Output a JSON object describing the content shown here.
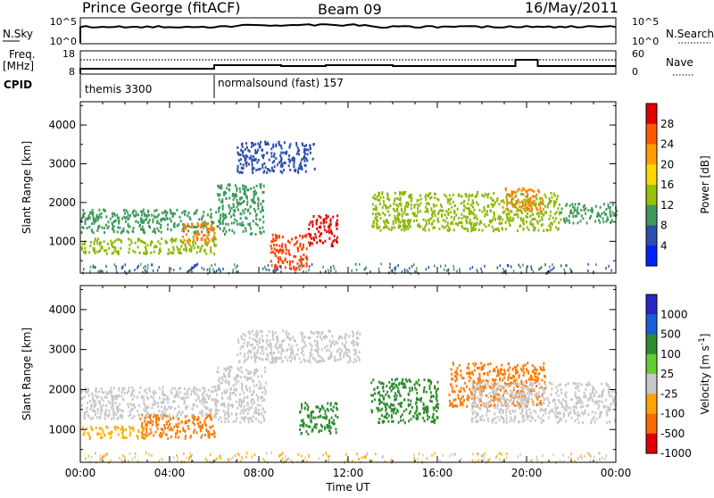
{
  "header": {
    "station": "Prince George (fitACF)",
    "beam": "Beam 09",
    "date": "16/May/2011"
  },
  "strips": {
    "nsky_label": "N.Sky",
    "nsky_ticks": [
      "10^5",
      "10^0"
    ],
    "nsearch_label": "N.Search",
    "nsearch_ticks": [
      "10^5",
      "10^0"
    ],
    "freq_label": "Freq.",
    "freq_unit": "[MHz]",
    "freq_ticks": [
      "18",
      "8"
    ],
    "nave_label": "Nave",
    "nave_ticks": [
      "60",
      "0"
    ],
    "cpid_label": "CPID",
    "cpid_segments": [
      {
        "label": "themis 3300",
        "start_hour": 0
      },
      {
        "label": "normalsound (fast) 157",
        "start_hour": 6
      }
    ]
  },
  "chart_data": [
    {
      "type": "heatmap",
      "title": "Power",
      "xlabel": "Time UT",
      "ylabel": "Slant Range [km]",
      "x_ticks": [
        "00:00",
        "04:00",
        "08:00",
        "12:00",
        "16:00",
        "20:00",
        "00:00"
      ],
      "xlim_hours": [
        0,
        24
      ],
      "ylim": [
        180,
        4600
      ],
      "y_ticks": [
        1000,
        2000,
        3000,
        4000
      ],
      "colorbar": {
        "label": "Power [dB]",
        "ticks": [
          "28",
          "24",
          "20",
          "16",
          "12",
          "8",
          "4"
        ],
        "colors": [
          "#e00000",
          "#ff5a00",
          "#ff9c00",
          "#ffd800",
          "#9ac000",
          "#3c9a5a",
          "#2c4eb0",
          "#0022ff"
        ]
      },
      "features": [
        {
          "hours": [
            0,
            6.1
          ],
          "range_km": [
            1250,
            1850
          ],
          "level": "green"
        },
        {
          "hours": [
            0,
            6.1
          ],
          "range_km": [
            700,
            1100
          ],
          "level": "green-yellow"
        },
        {
          "hours": [
            4.5,
            6.0
          ],
          "range_km": [
            950,
            1500
          ],
          "level": "orange"
        },
        {
          "hours": [
            6.1,
            8.2
          ],
          "range_km": [
            1200,
            2500
          ],
          "level": "green"
        },
        {
          "hours": [
            8.5,
            10.2
          ],
          "range_km": [
            300,
            1200
          ],
          "level": "orange-red"
        },
        {
          "hours": [
            10.2,
            11.5
          ],
          "range_km": [
            900,
            1700
          ],
          "level": "red"
        },
        {
          "hours": [
            13.0,
            21.5
          ],
          "range_km": [
            1300,
            2300
          ],
          "level": "green-yellow"
        },
        {
          "hours": [
            19.0,
            20.7
          ],
          "range_km": [
            1800,
            2400
          ],
          "level": "orange"
        },
        {
          "hours": [
            21.5,
            24
          ],
          "range_km": [
            1500,
            2000
          ],
          "level": "green"
        },
        {
          "hours": [
            7.0,
            10.5
          ],
          "range_km": [
            2800,
            3600
          ],
          "level": "blue"
        }
      ]
    },
    {
      "type": "heatmap",
      "title": "Velocity",
      "xlabel": "Time UT",
      "ylabel": "Slant Range [km]",
      "x_ticks": [
        "00:00",
        "04:00",
        "08:00",
        "12:00",
        "16:00",
        "20:00",
        "00:00"
      ],
      "xlim_hours": [
        0,
        24
      ],
      "ylim": [
        180,
        4600
      ],
      "y_ticks": [
        1000,
        2000,
        3000,
        4000
      ],
      "colorbar": {
        "label": "Velocity [m s",
        "label_sup": "-1",
        "label_end": "]",
        "ticks": [
          "1000",
          "500",
          "100",
          "25",
          "-25",
          "-100",
          "-500",
          "-1000"
        ],
        "colors": [
          "#2828c8",
          "#1860d8",
          "#2e8b2e",
          "#66cc33",
          "#c8c8c8",
          "#ffa500",
          "#ff6a00",
          "#e00000"
        ]
      },
      "features": [
        {
          "hours": [
            0,
            6.1
          ],
          "range_km": [
            1300,
            2100
          ],
          "level": "grey"
        },
        {
          "hours": [
            2.5,
            6.0
          ],
          "range_km": [
            800,
            1400
          ],
          "level": "orange"
        },
        {
          "hours": [
            0,
            3.0
          ],
          "range_km": [
            800,
            1100
          ],
          "level": "amber"
        },
        {
          "hours": [
            6.0,
            8.3
          ],
          "range_km": [
            1200,
            2600
          ],
          "level": "grey"
        },
        {
          "hours": [
            7.0,
            12.5
          ],
          "range_km": [
            2700,
            3500
          ],
          "level": "grey"
        },
        {
          "hours": [
            9.8,
            11.5
          ],
          "range_km": [
            900,
            1700
          ],
          "level": "green"
        },
        {
          "hours": [
            13.0,
            16.0
          ],
          "range_km": [
            1200,
            2300
          ],
          "level": "green"
        },
        {
          "hours": [
            16.5,
            20.8
          ],
          "range_km": [
            1600,
            2700
          ],
          "level": "orange"
        },
        {
          "hours": [
            17.5,
            24
          ],
          "range_km": [
            1200,
            2200
          ],
          "level": "grey"
        }
      ]
    }
  ]
}
